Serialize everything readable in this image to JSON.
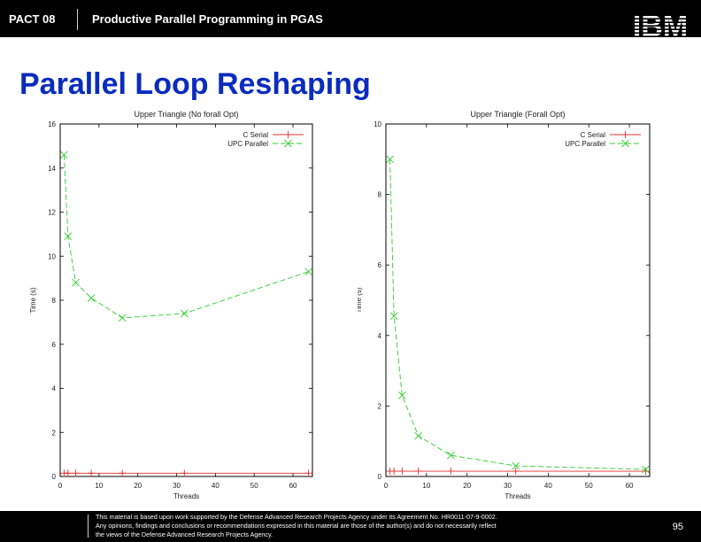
{
  "header": {
    "conference": "PACT 08",
    "talk_title": "Productive Parallel Programming in PGAS",
    "logo_text": "IBM"
  },
  "slide": {
    "title": "Parallel Loop Reshaping"
  },
  "chart_data": [
    {
      "type": "line",
      "title": "Upper Triangle (No forall Opt)",
      "xlabel": "Threads",
      "ylabel": "Time (s)",
      "xlim": [
        0,
        65
      ],
      "ylim": [
        0,
        16
      ],
      "xticks": [
        0,
        10,
        20,
        30,
        40,
        50,
        60
      ],
      "yticks": [
        0,
        2,
        4,
        6,
        8,
        10,
        12,
        14,
        16
      ],
      "legend": "top-right",
      "series": [
        {
          "name": "C Serial",
          "color": "#e03030",
          "marker": "plus",
          "dash": "",
          "x": [
            1,
            2,
            4,
            8,
            16,
            32,
            64
          ],
          "y": [
            0.15,
            0.15,
            0.15,
            0.15,
            0.15,
            0.15,
            0.15
          ]
        },
        {
          "name": "UPC Parallel",
          "color": "#33cc33",
          "marker": "x",
          "dash": "6,3",
          "x": [
            1,
            2,
            4,
            8,
            16,
            32,
            64
          ],
          "y": [
            14.6,
            10.9,
            8.8,
            8.1,
            7.2,
            7.4,
            9.3
          ]
        }
      ]
    },
    {
      "type": "line",
      "title": "Upper Triangle (Forall Opt)",
      "xlabel": "Threads",
      "ylabel": "Time (s)",
      "xlim": [
        0,
        65
      ],
      "ylim": [
        0,
        10
      ],
      "xticks": [
        0,
        10,
        20,
        30,
        40,
        50,
        60
      ],
      "yticks": [
        0,
        2,
        4,
        6,
        8,
        10
      ],
      "legend": "top-right",
      "series": [
        {
          "name": "C Serial",
          "color": "#e03030",
          "marker": "plus",
          "dash": "",
          "x": [
            1,
            2,
            4,
            8,
            16,
            32,
            64
          ],
          "y": [
            0.15,
            0.15,
            0.15,
            0.15,
            0.15,
            0.15,
            0.15
          ]
        },
        {
          "name": "UPC Parallel",
          "color": "#33cc33",
          "marker": "x",
          "dash": "6,3",
          "x": [
            1,
            2,
            4,
            8,
            16,
            32,
            64
          ],
          "y": [
            9.0,
            4.55,
            2.3,
            1.15,
            0.6,
            0.3,
            0.2
          ]
        }
      ]
    }
  ],
  "footer": {
    "disclaimer_line1": "This material is based upon work supported by the Defense Advanced Research Projects Agency under its Agreement No. HR0011-07-9-0002.",
    "disclaimer_line2": "Any opinions, findings and conclusions or recommendations expressed in this material are those of the author(s) and do not necessarily reflect",
    "disclaimer_line3": "the views of the Defense Advanced Research Projects Agency.",
    "page_number": "95"
  }
}
